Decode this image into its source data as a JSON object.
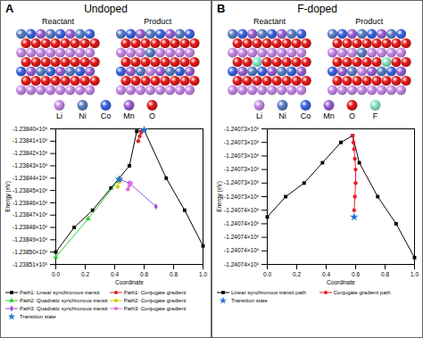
{
  "panels": [
    {
      "label": "A",
      "title": "Undoped",
      "structures": [
        "Reactant",
        "Product"
      ],
      "elements": [
        {
          "name": "Li",
          "color": "#c889e8"
        },
        {
          "name": "Ni",
          "color": "#5b7fc4"
        },
        {
          "name": "Co",
          "color": "#3a64e0"
        },
        {
          "name": "Mn",
          "color": "#9c60d4"
        },
        {
          "name": "O",
          "color": "#e5191a"
        }
      ]
    },
    {
      "label": "B",
      "title": "F-doped",
      "structures": [
        "Reactant",
        "Product"
      ],
      "elements": [
        {
          "name": "Li",
          "color": "#c889e8"
        },
        {
          "name": "Ni",
          "color": "#5b7fc4"
        },
        {
          "name": "Co",
          "color": "#3a64e0"
        },
        {
          "name": "Mn",
          "color": "#9c60d4"
        },
        {
          "name": "O",
          "color": "#e5191a"
        },
        {
          "name": "F",
          "color": "#86e6c8"
        }
      ]
    }
  ],
  "chart_data": [
    {
      "type": "line",
      "x_label": "Coordinate",
      "y_label": "Energy (eV)",
      "grid": false,
      "legend": "bottom",
      "xlim": [
        0,
        1
      ],
      "xticks": [
        {
          "value": 0,
          "label": "0.0"
        },
        {
          "value": 0.2,
          "label": "0.2"
        },
        {
          "value": 0.4,
          "label": "0.4"
        },
        {
          "value": 0.6,
          "label": "0.6"
        },
        {
          "value": 0.8,
          "label": "0.8"
        },
        {
          "value": 1,
          "label": "1.0"
        }
      ],
      "ylim": [
        -123851,
        -123840
      ],
      "yticks": [
        {
          "value": -123840,
          "label": "-1.23840×10⁵"
        },
        {
          "value": -123841,
          "label": "-1.23841×10⁵"
        },
        {
          "value": -123842,
          "label": "-1.23842×10⁵"
        },
        {
          "value": -123843,
          "label": "-1.23843×10⁵"
        },
        {
          "value": -123844,
          "label": "-1.23844×10⁵"
        },
        {
          "value": -123845,
          "label": "-1.23845×10⁵"
        },
        {
          "value": -123846,
          "label": "-1.23846×10⁵"
        },
        {
          "value": -123847,
          "label": "-1.23847×10⁵"
        },
        {
          "value": -123848,
          "label": "-1.23848×10⁵"
        },
        {
          "value": -123849,
          "label": "-1.23849×10⁵"
        },
        {
          "value": -123850,
          "label": "-1.23850×10⁵"
        },
        {
          "value": -123851,
          "label": "-1.23851×10⁵"
        }
      ],
      "series": [
        {
          "name": "Path1: Linear synchronous transit",
          "type": "line",
          "color": "#000000",
          "marker": "square",
          "line_style": "solid",
          "x": [
            0,
            0.125,
            0.25,
            0.375,
            0.5,
            0.55,
            0.6,
            0.75,
            0.875,
            1
          ],
          "values": [
            -123850.0,
            -123848.0,
            -123846.6,
            -123844.8,
            -123843.0,
            -123840.2,
            -123840.1,
            -123844.0,
            -123846.6,
            -123849.5
          ]
        },
        {
          "name": "Path1: Conjugate gradient",
          "type": "line",
          "color": "#e8202a",
          "marker": "circle",
          "line_style": "solid",
          "x": [
            0.56,
            0.57,
            0.58,
            0.59,
            0.6
          ],
          "values": [
            -123841.0,
            -123840.6,
            -123840.3,
            -123840.15,
            -123840.1
          ]
        },
        {
          "name": "Path2: Quadratic synchronous transit",
          "type": "line",
          "color": "#33cc33",
          "marker": "triangle",
          "line_style": "solid",
          "x": [
            0,
            0.22,
            0.43
          ],
          "values": [
            -123850.4,
            -123847.3,
            -123844.1
          ]
        },
        {
          "name": "Path2: Conjugate gradient",
          "type": "line",
          "color": "#d2d200",
          "marker": "circle",
          "line_style": "solid",
          "x": [
            0.42,
            0.43,
            0.44
          ],
          "values": [
            -123844.7,
            -123844.3,
            -123844.1
          ]
        },
        {
          "name": "Path3: Quadratic synchronous transit",
          "type": "line",
          "color": "#a050e0",
          "marker": "diamond",
          "line_style": "solid",
          "x": [
            0.43,
            0.5,
            0.68
          ],
          "values": [
            -123844.1,
            -123844.4,
            -123846.3
          ]
        },
        {
          "name": "Path3: Conjugate gradient",
          "type": "line",
          "color": "#e070e0",
          "marker": "circle",
          "line_style": "solid",
          "x": [
            0.49,
            0.5,
            0.51
          ],
          "values": [
            -123844.9,
            -123844.6,
            -123844.4
          ]
        },
        {
          "name": "Transition state",
          "type": "scatter",
          "color": "#1f77d4",
          "marker": "star",
          "x": [
            0.6,
            0.43
          ],
          "values": [
            -123840.1,
            -123844.1
          ]
        }
      ]
    },
    {
      "type": "line",
      "x_label": "Coordinate",
      "y_label": "Energy (eV)",
      "grid": false,
      "legend": "bottom",
      "xlim": [
        0,
        1
      ],
      "xticks": [
        {
          "value": 0,
          "label": "0.0"
        },
        {
          "value": 0.2,
          "label": "0.2"
        },
        {
          "value": 0.4,
          "label": "0.4"
        },
        {
          "value": 0.6,
          "label": "0.6"
        },
        {
          "value": 0.8,
          "label": "0.8"
        },
        {
          "value": 1,
          "label": "1.0"
        }
      ],
      "ylim": [
        -124073.9,
        -124072.9
      ],
      "yticks": [
        {
          "value": -124072.9,
          "label": "-1.24073×10⁵"
        },
        {
          "value": -124073.0,
          "label": "-1.24073×10⁵"
        },
        {
          "value": -124073.1,
          "label": "-1.24073×10⁵"
        },
        {
          "value": -124073.2,
          "label": "-1.24073×10⁵"
        },
        {
          "value": -124073.3,
          "label": "-1.24073×10⁵"
        },
        {
          "value": -124073.4,
          "label": "-1.24073×10⁵"
        },
        {
          "value": -124073.5,
          "label": "-1.24074×10⁵"
        },
        {
          "value": -124073.6,
          "label": "-1.24074×10⁵"
        },
        {
          "value": -124073.7,
          "label": "-1.24074×10⁵"
        },
        {
          "value": -124073.8,
          "label": "-1.24074×10⁵"
        },
        {
          "value": -124073.9,
          "label": "-1.24074×10⁵"
        }
      ],
      "series": [
        {
          "name": "Linear synchronous transit path",
          "type": "line",
          "color": "#000000",
          "marker": "square",
          "line_style": "solid",
          "x": [
            0,
            0.125,
            0.25,
            0.375,
            0.5,
            0.58,
            0.625,
            0.75,
            0.875,
            1
          ],
          "values": [
            -124073.55,
            -124073.4,
            -124073.3,
            -124073.15,
            -124073.0,
            -124072.95,
            -124073.15,
            -124073.4,
            -124073.6,
            -124073.85
          ]
        },
        {
          "name": "Conjugate gradient path",
          "type": "line",
          "color": "#e8202a",
          "marker": "circle",
          "line_style": "solid",
          "x": [
            0.58,
            0.585,
            0.59,
            0.595,
            0.6,
            0.6,
            0.595,
            0.59
          ],
          "values": [
            -124072.95,
            -124073.0,
            -124073.05,
            -124073.12,
            -124073.2,
            -124073.3,
            -124073.4,
            -124073.5
          ]
        },
        {
          "name": "Transition state",
          "type": "scatter",
          "color": "#1f77d4",
          "marker": "star",
          "x": [
            0.59
          ],
          "values": [
            -124073.55
          ]
        }
      ]
    }
  ]
}
